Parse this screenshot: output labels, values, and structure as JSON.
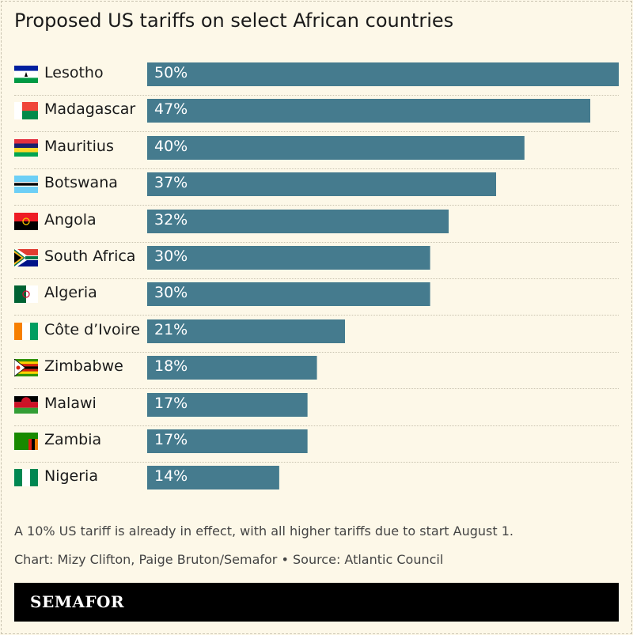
{
  "chart_data": {
    "type": "bar",
    "orientation": "horizontal",
    "title": "Proposed US tariffs on select African countries",
    "categories": [
      "Lesotho",
      "Madagascar",
      "Mauritius",
      "Botswana",
      "Angola",
      "South Africa",
      "Algeria",
      "Côte d’Ivoire",
      "Zimbabwe",
      "Malawi",
      "Zambia",
      "Nigeria"
    ],
    "values": [
      50,
      47,
      40,
      37,
      32,
      30,
      30,
      21,
      18,
      17,
      17,
      14
    ],
    "value_labels": [
      "50%",
      "47%",
      "40%",
      "37%",
      "32%",
      "30%",
      "30%",
      "21%",
      "18%",
      "17%",
      "17%",
      "14%"
    ],
    "flags": [
      "lesotho-flag",
      "madagascar-flag",
      "mauritius-flag",
      "botswana-flag",
      "angola-flag",
      "south-africa-flag",
      "algeria-flag",
      "cote-divoire-flag",
      "zimbabwe-flag",
      "malawi-flag",
      "zambia-flag",
      "nigeria-flag"
    ],
    "xlim": [
      0,
      50
    ],
    "grid": false,
    "bar_color": "#457b8e"
  },
  "notes": {
    "caption": "A 10% US tariff is already in effect, with all higher tariffs due to start August 1.",
    "credit": "Chart: Mizy Clifton, Paige Bruton/Semafor • Source: Atlantic Council"
  },
  "footer": {
    "logo": "SEMAFOR"
  },
  "colors": {
    "background": "#fdf8e8",
    "bar": "#457b8e",
    "footer": "#000000"
  }
}
